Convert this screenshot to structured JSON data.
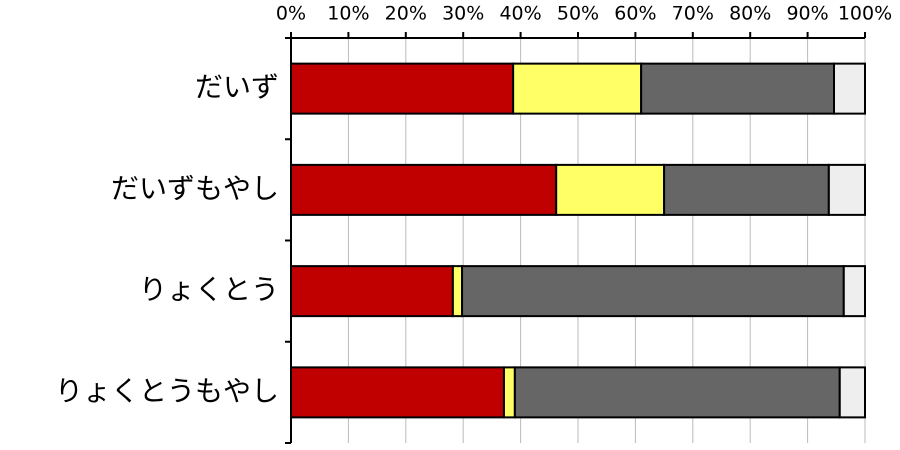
{
  "chart_data": {
    "type": "stacked-bar-horizontal",
    "categories": [
      "だいず",
      "だいずもやし",
      "りょくとう",
      "りょくとうもやし"
    ],
    "series": [
      {
        "color": "#c00000",
        "values": [
          38.7,
          46.2,
          28.2,
          37.1
        ]
      },
      {
        "color": "#ffff66",
        "values": [
          22.3,
          18.8,
          1.6,
          1.9
        ]
      },
      {
        "color": "#666666",
        "values": [
          33.6,
          28.7,
          66.5,
          56.6
        ]
      },
      {
        "color": "#eeeeee",
        "values": [
          5.4,
          6.3,
          3.7,
          4.4
        ]
      }
    ],
    "xlim": [
      0,
      100
    ],
    "xticks": [
      {
        "value": 0,
        "label": "0%"
      },
      {
        "value": 10,
        "label": "10%"
      },
      {
        "value": 20,
        "label": "20%"
      },
      {
        "value": 30,
        "label": "30%"
      },
      {
        "value": 40,
        "label": "40%"
      },
      {
        "value": 50,
        "label": "50%"
      },
      {
        "value": 60,
        "label": "60%"
      },
      {
        "value": 70,
        "label": "70%"
      },
      {
        "value": 80,
        "label": "80%"
      },
      {
        "value": 90,
        "label": "90%"
      },
      {
        "value": 100,
        "label": "100%"
      }
    ],
    "grid": true
  }
}
